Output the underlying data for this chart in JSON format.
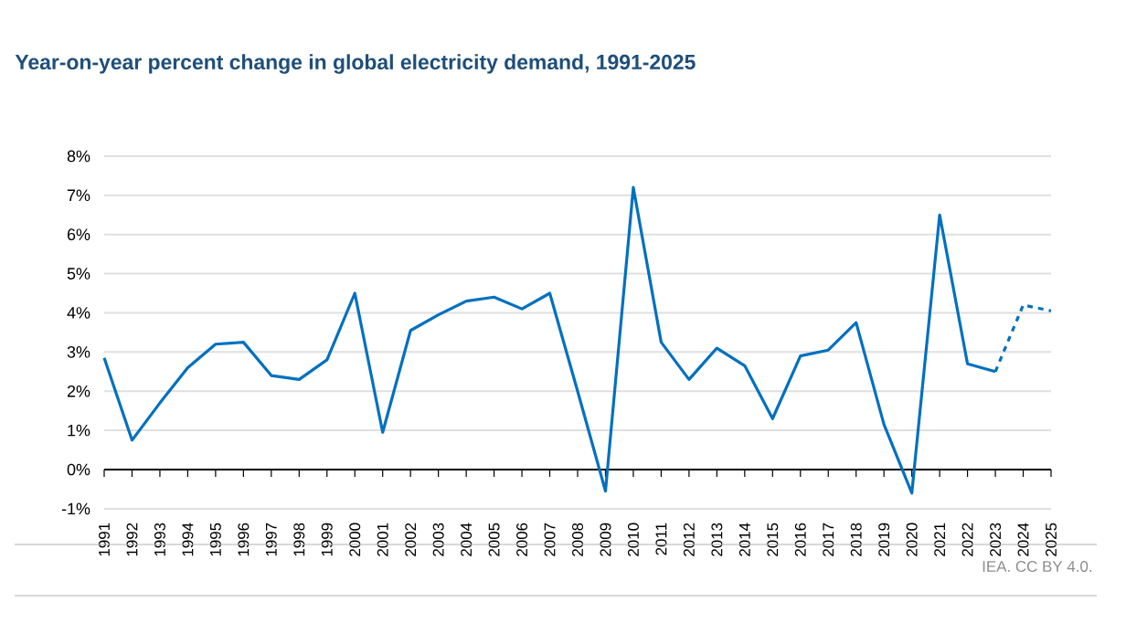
{
  "chart_data": {
    "type": "line",
    "title": "Year-on-year percent change in global electricity demand, 1991-2025",
    "categories": [
      "1991",
      "1992",
      "1993",
      "1994",
      "1995",
      "1996",
      "1997",
      "1998",
      "1999",
      "2000",
      "2001",
      "2002",
      "2003",
      "2004",
      "2005",
      "2006",
      "2007",
      "2008",
      "2009",
      "2010",
      "2011",
      "2012",
      "2013",
      "2014",
      "2015",
      "2016",
      "2017",
      "2018",
      "2019",
      "2020",
      "2021",
      "2022",
      "2023",
      "2024",
      "2025"
    ],
    "series": [
      {
        "color": "#0070c0",
        "line_style": "solid",
        "values": [
          2.85,
          0.75,
          1.7,
          2.6,
          3.2,
          3.25,
          2.4,
          2.3,
          2.8,
          4.5,
          0.95,
          3.55,
          3.95,
          4.3,
          4.4,
          4.1,
          4.5,
          2.0,
          -0.55,
          7.2,
          3.25,
          2.3,
          3.1,
          2.65,
          1.3,
          2.9,
          3.05,
          3.75,
          1.15,
          -0.6,
          6.5,
          2.7,
          2.5,
          null,
          null
        ]
      },
      {
        "color": "#0070c0",
        "line_style": "dashed",
        "values": [
          null,
          null,
          null,
          null,
          null,
          null,
          null,
          null,
          null,
          null,
          null,
          null,
          null,
          null,
          null,
          null,
          null,
          null,
          null,
          null,
          null,
          null,
          null,
          null,
          null,
          null,
          null,
          null,
          null,
          null,
          null,
          null,
          2.5,
          4.2,
          4.05
        ]
      }
    ],
    "ylim": [
      -1,
      8
    ],
    "yticks": [
      {
        "value": -1,
        "label": "-1%"
      },
      {
        "value": 0,
        "label": "0%"
      },
      {
        "value": 1,
        "label": "1%"
      },
      {
        "value": 2,
        "label": "2%"
      },
      {
        "value": 3,
        "label": "3%"
      },
      {
        "value": 4,
        "label": "4%"
      },
      {
        "value": 5,
        "label": "5%"
      },
      {
        "value": 6,
        "label": "6%"
      },
      {
        "value": 7,
        "label": "7%"
      },
      {
        "value": 8,
        "label": "8%"
      }
    ],
    "grid": "y",
    "marker": "none",
    "annotations": [
      "IEA. CC BY 4.0."
    ]
  }
}
